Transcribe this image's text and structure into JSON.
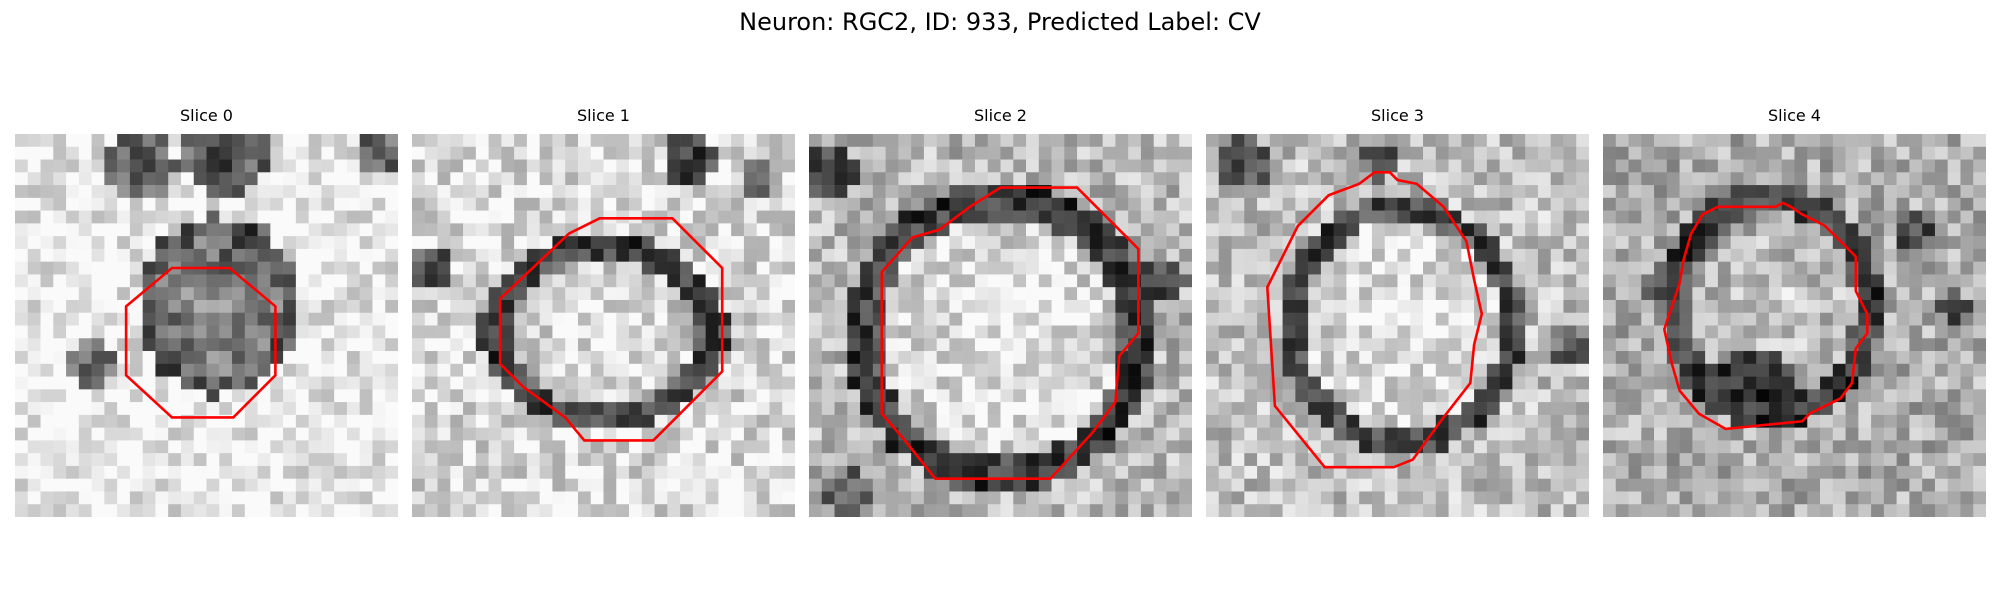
{
  "figure": {
    "title": "Neuron: RGC2, ID: 933, Predicted Label: CV"
  },
  "slices": [
    {
      "title": "Slice 0",
      "cell": "dim",
      "contour": "octagon-small"
    },
    {
      "title": "Slice 1",
      "cell": "oval",
      "contour": "octagon-wide"
    },
    {
      "title": "Slice 2",
      "cell": "large-round",
      "contour": "octagon-large"
    },
    {
      "title": "Slice 3",
      "cell": "round",
      "contour": "octagon-tall"
    },
    {
      "title": "Slice 4",
      "cell": "small-round",
      "contour": "octagon-narrow"
    }
  ],
  "colors": {
    "contour": "#ff0000",
    "background": "#ffffff"
  }
}
